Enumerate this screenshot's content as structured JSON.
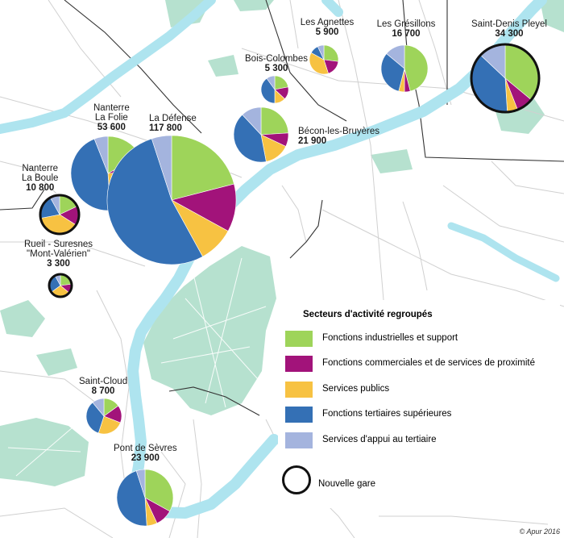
{
  "colors": {
    "industrial": "#9ed45a",
    "commercial": "#a2137a",
    "public": "#f7c242",
    "tertiary": "#3470b5",
    "support": "#a4b4de",
    "water": "#aee4ef",
    "park": "#b6e1cf",
    "road": "#cfcfcf",
    "border": "#333333"
  },
  "legend": {
    "title": "Secteurs d'activité regroupés",
    "items": [
      {
        "key": "industrial",
        "label": "Fonctions industrielles et support"
      },
      {
        "key": "commercial",
        "label": "Fonctions commerciales et de services de proximité"
      },
      {
        "key": "public",
        "label": "Services publics"
      },
      {
        "key": "tertiary",
        "label": "Fonctions tertiaires supérieures"
      },
      {
        "key": "support",
        "label": "Services d'appui au tertiaire"
      }
    ],
    "new_station": "Nouvelle gare"
  },
  "credit": "© Apur 2016",
  "stations": [
    {
      "id": "nanterre-la-folie",
      "name": "Nanterre\nLa Folie",
      "value": "53 600",
      "new": false,
      "shares": {
        "industrial": 0.17,
        "commercial": 0.07,
        "public": 0.25,
        "tertiary": 0.45,
        "support": 0.06
      }
    },
    {
      "id": "la-defense",
      "name": "La Défense",
      "value": "117 800",
      "new": false,
      "shares": {
        "industrial": 0.21,
        "commercial": 0.12,
        "public": 0.09,
        "tertiary": 0.53,
        "support": 0.05
      }
    },
    {
      "id": "saint-denis-pleyel",
      "name": "Saint-Denis Pleyel",
      "value": "34 300",
      "new": true,
      "shares": {
        "industrial": 0.36,
        "commercial": 0.08,
        "public": 0.05,
        "tertiary": 0.38,
        "support": 0.13
      }
    },
    {
      "id": "les-gresillons",
      "name": "Les Grésillons",
      "value": "16 700",
      "new": false,
      "shares": {
        "industrial": 0.46,
        "commercial": 0.04,
        "public": 0.04,
        "tertiary": 0.32,
        "support": 0.14
      }
    },
    {
      "id": "les-agnettes",
      "name": "Les Agnettes",
      "value": "5 900",
      "new": false,
      "shares": {
        "industrial": 0.27,
        "commercial": 0.18,
        "public": 0.38,
        "tertiary": 0.1,
        "support": 0.07
      }
    },
    {
      "id": "bois-colombes",
      "name": "Bois-Colombes",
      "value": "5 300",
      "new": false,
      "shares": {
        "industrial": 0.22,
        "commercial": 0.15,
        "public": 0.13,
        "tertiary": 0.4,
        "support": 0.1
      }
    },
    {
      "id": "becon-les-bruyeres",
      "name": "Bécon-les-Bruyères",
      "value": "21 900",
      "new": false,
      "shares": {
        "industrial": 0.24,
        "commercial": 0.08,
        "public": 0.15,
        "tertiary": 0.41,
        "support": 0.12
      }
    },
    {
      "id": "nanterre-la-boule",
      "name": "Nanterre\nLa Boule",
      "value": "10 800",
      "new": true,
      "shares": {
        "industrial": 0.18,
        "commercial": 0.16,
        "public": 0.38,
        "tertiary": 0.2,
        "support": 0.08
      }
    },
    {
      "id": "rueil-suresnes",
      "name": "Rueil - Suresnes\n\"Mont-Valérien\"",
      "value": "3 300",
      "new": true,
      "shares": {
        "industrial": 0.23,
        "commercial": 0.13,
        "public": 0.29,
        "tertiary": 0.27,
        "support": 0.08
      }
    },
    {
      "id": "saint-cloud",
      "name": "Saint-Cloud",
      "value": "8 700",
      "new": false,
      "shares": {
        "industrial": 0.15,
        "commercial": 0.16,
        "public": 0.24,
        "tertiary": 0.34,
        "support": 0.11
      }
    },
    {
      "id": "pont-de-sevres",
      "name": "Pont de Sèvres",
      "value": "23 900",
      "new": false,
      "shares": {
        "industrial": 0.33,
        "commercial": 0.1,
        "public": 0.06,
        "tertiary": 0.46,
        "support": 0.05
      }
    }
  ]
}
